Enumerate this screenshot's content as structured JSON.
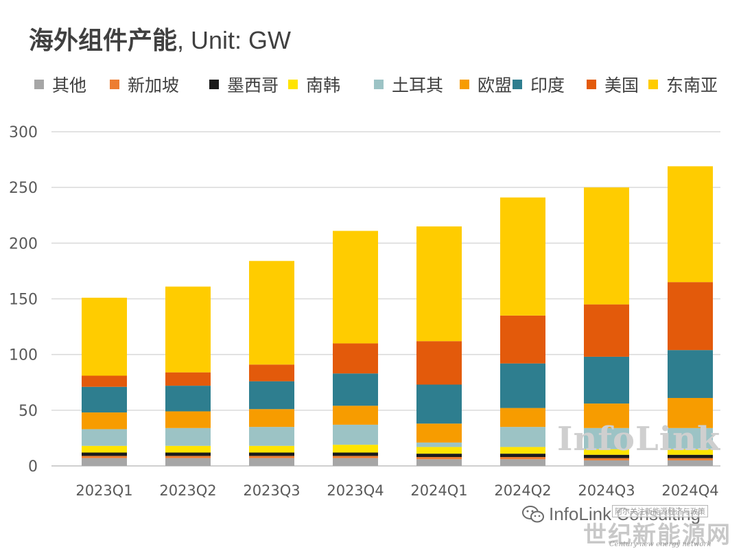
{
  "title": {
    "main": "海外组件产能",
    "sub": ", Unit: GW"
  },
  "chart_data": {
    "type": "bar",
    "stacked": true,
    "categories": [
      "2023Q1",
      "2023Q2",
      "2023Q3",
      "2023Q4",
      "2024Q1",
      "2024Q2",
      "2024Q3",
      "2024Q4"
    ],
    "ylim": [
      0,
      300
    ],
    "yticks": [
      0,
      50,
      100,
      150,
      200,
      250,
      300
    ],
    "grid": true,
    "legend_position": "top",
    "series": [
      {
        "name": "其他",
        "color": "#a6a6a6",
        "values": [
          7,
          7,
          7,
          7,
          6,
          6,
          5,
          5
        ]
      },
      {
        "name": "新加坡",
        "color": "#ed7d31",
        "values": [
          2,
          2,
          2,
          2,
          2,
          2,
          2,
          2
        ]
      },
      {
        "name": "墨西哥",
        "color": "#1a1a1a",
        "values": [
          3,
          3,
          3,
          3,
          3,
          3,
          3,
          3
        ]
      },
      {
        "name": "南韩",
        "color": "#ffe400",
        "values": [
          6,
          6,
          6,
          7,
          6,
          6,
          5,
          5
        ]
      },
      {
        "name": "土耳其",
        "color": "#9cc3c5",
        "values": [
          15,
          16,
          17,
          18,
          4,
          18,
          19,
          19
        ]
      },
      {
        "name": "欧盟",
        "color": "#f79c00",
        "values": [
          15,
          15,
          16,
          17,
          17,
          17,
          22,
          27
        ]
      },
      {
        "name": "印度",
        "color": "#2e7e8f",
        "values": [
          23,
          23,
          25,
          29,
          35,
          40,
          42,
          43
        ]
      },
      {
        "name": "美国",
        "color": "#e35a0b",
        "values": [
          10,
          12,
          15,
          27,
          39,
          43,
          47,
          61
        ]
      },
      {
        "name": "东南亚",
        "color": "#ffcc00",
        "values": [
          70,
          77,
          93,
          101,
          103,
          106,
          105,
          104
        ]
      }
    ]
  },
  "watermark": "InfoLink",
  "footer": {
    "brand": "InfoLink Consulting",
    "stamp_top": "阿尔关注新能源经济与政策",
    "stamp_cn": "世纪新能源网",
    "stamp_en": "Century new energy network"
  },
  "icons": {
    "wechat": "wechat-icon"
  }
}
